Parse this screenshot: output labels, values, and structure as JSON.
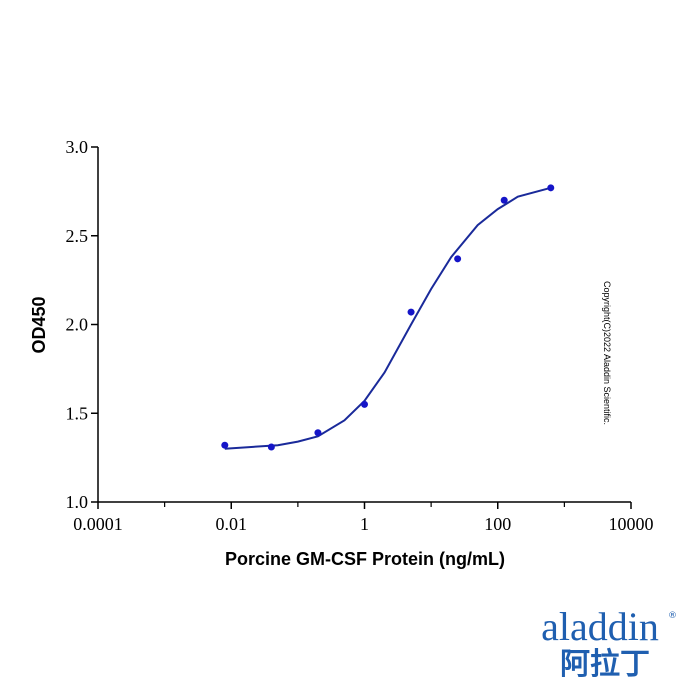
{
  "chart_data": {
    "type": "scatter",
    "x_label": "Porcine GM-CSF Protein (ng/mL)",
    "y_label": "OD450",
    "xscale": "log",
    "xlim": [
      0.0001,
      10000
    ],
    "xticks": [
      0.0001,
      0.01,
      1,
      100,
      10000
    ],
    "xminorticks": [
      0.001,
      0.1,
      10,
      1000
    ],
    "ylim": [
      1.0,
      3.0
    ],
    "yticks": [
      {
        "value": 1.0,
        "label": "1.0"
      },
      {
        "value": 1.5,
        "label": "1.5"
      },
      {
        "value": 2.0,
        "label": "2.0"
      },
      {
        "value": 2.5,
        "label": "2.5"
      },
      {
        "value": 3.0,
        "label": "3.0"
      }
    ],
    "series": [
      {
        "type": "scatter",
        "color": "#1515c8",
        "x": [
          0.008,
          0.04,
          0.2,
          1,
          5,
          25,
          125,
          625
        ],
        "values": [
          1.32,
          1.31,
          1.39,
          1.55,
          2.07,
          2.37,
          2.7,
          2.77
        ]
      },
      {
        "type": "line",
        "color": "#1a2a9a",
        "x": [
          0.008,
          0.02,
          0.05,
          0.1,
          0.2,
          0.5,
          1,
          2,
          5,
          10,
          20,
          50,
          100,
          200,
          625
        ],
        "values": [
          1.3,
          1.31,
          1.32,
          1.34,
          1.37,
          1.46,
          1.57,
          1.73,
          2.0,
          2.2,
          2.38,
          2.56,
          2.65,
          2.72,
          2.77
        ]
      }
    ],
    "annotations": [
      "Copyright(C)2022 Aladdin Scientific."
    ],
    "logo": {
      "text": "aladdin",
      "mark": "®",
      "subtext": "阿拉丁"
    }
  }
}
